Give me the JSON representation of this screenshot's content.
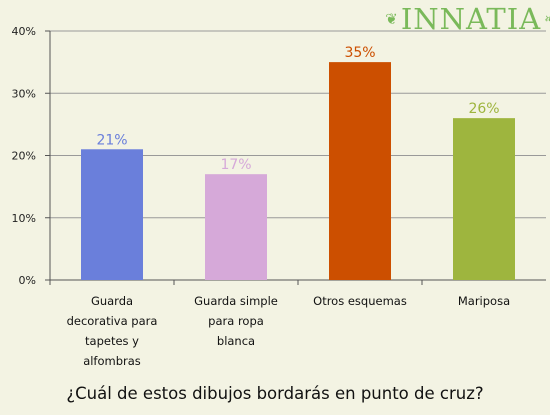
{
  "brand": {
    "name": "INNATIA",
    "left_ornament": "❦",
    "right_ornament": "❧",
    "color": "#7ab95a"
  },
  "question": "¿Cuál de estos dibujos bordarás en punto de cruz?",
  "chart_data": {
    "type": "bar",
    "categories": [
      [
        "Guarda",
        "decorativa para",
        "tapetes y",
        "alfombras"
      ],
      [
        "Guarda simple",
        "para ropa",
        "blanca"
      ],
      [
        "Otros esquemas"
      ],
      [
        "Mariposa"
      ]
    ],
    "values": [
      21,
      17,
      35,
      26
    ],
    "value_labels": [
      "21%",
      "17%",
      "35%",
      "26%"
    ],
    "colors": [
      "#6a7fdb",
      "#d6a9d9",
      "#cc4f00",
      "#9eb53e"
    ],
    "ylim": [
      0,
      40
    ],
    "yticks": [
      0,
      10,
      20,
      30,
      40
    ],
    "ytick_labels": [
      "0%",
      "10%",
      "20%",
      "30%",
      "40%"
    ],
    "grid": true,
    "title": "",
    "xlabel": "",
    "ylabel": ""
  }
}
